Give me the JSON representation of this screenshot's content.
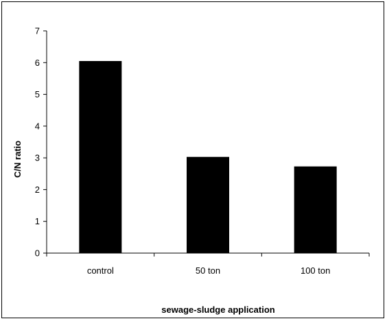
{
  "chart_data": {
    "type": "bar",
    "title": "",
    "xlabel": "sewage-sludge application",
    "ylabel": "C/N ratio",
    "categories": [
      "control",
      "50 ton",
      "100 ton"
    ],
    "values": [
      6.05,
      3.03,
      2.73
    ],
    "ylim": [
      0,
      7
    ],
    "yticks": [
      "0",
      "1",
      "2",
      "3",
      "4",
      "5",
      "6",
      "7"
    ],
    "grid": false,
    "legend": "none",
    "bar_color": "#000000"
  }
}
